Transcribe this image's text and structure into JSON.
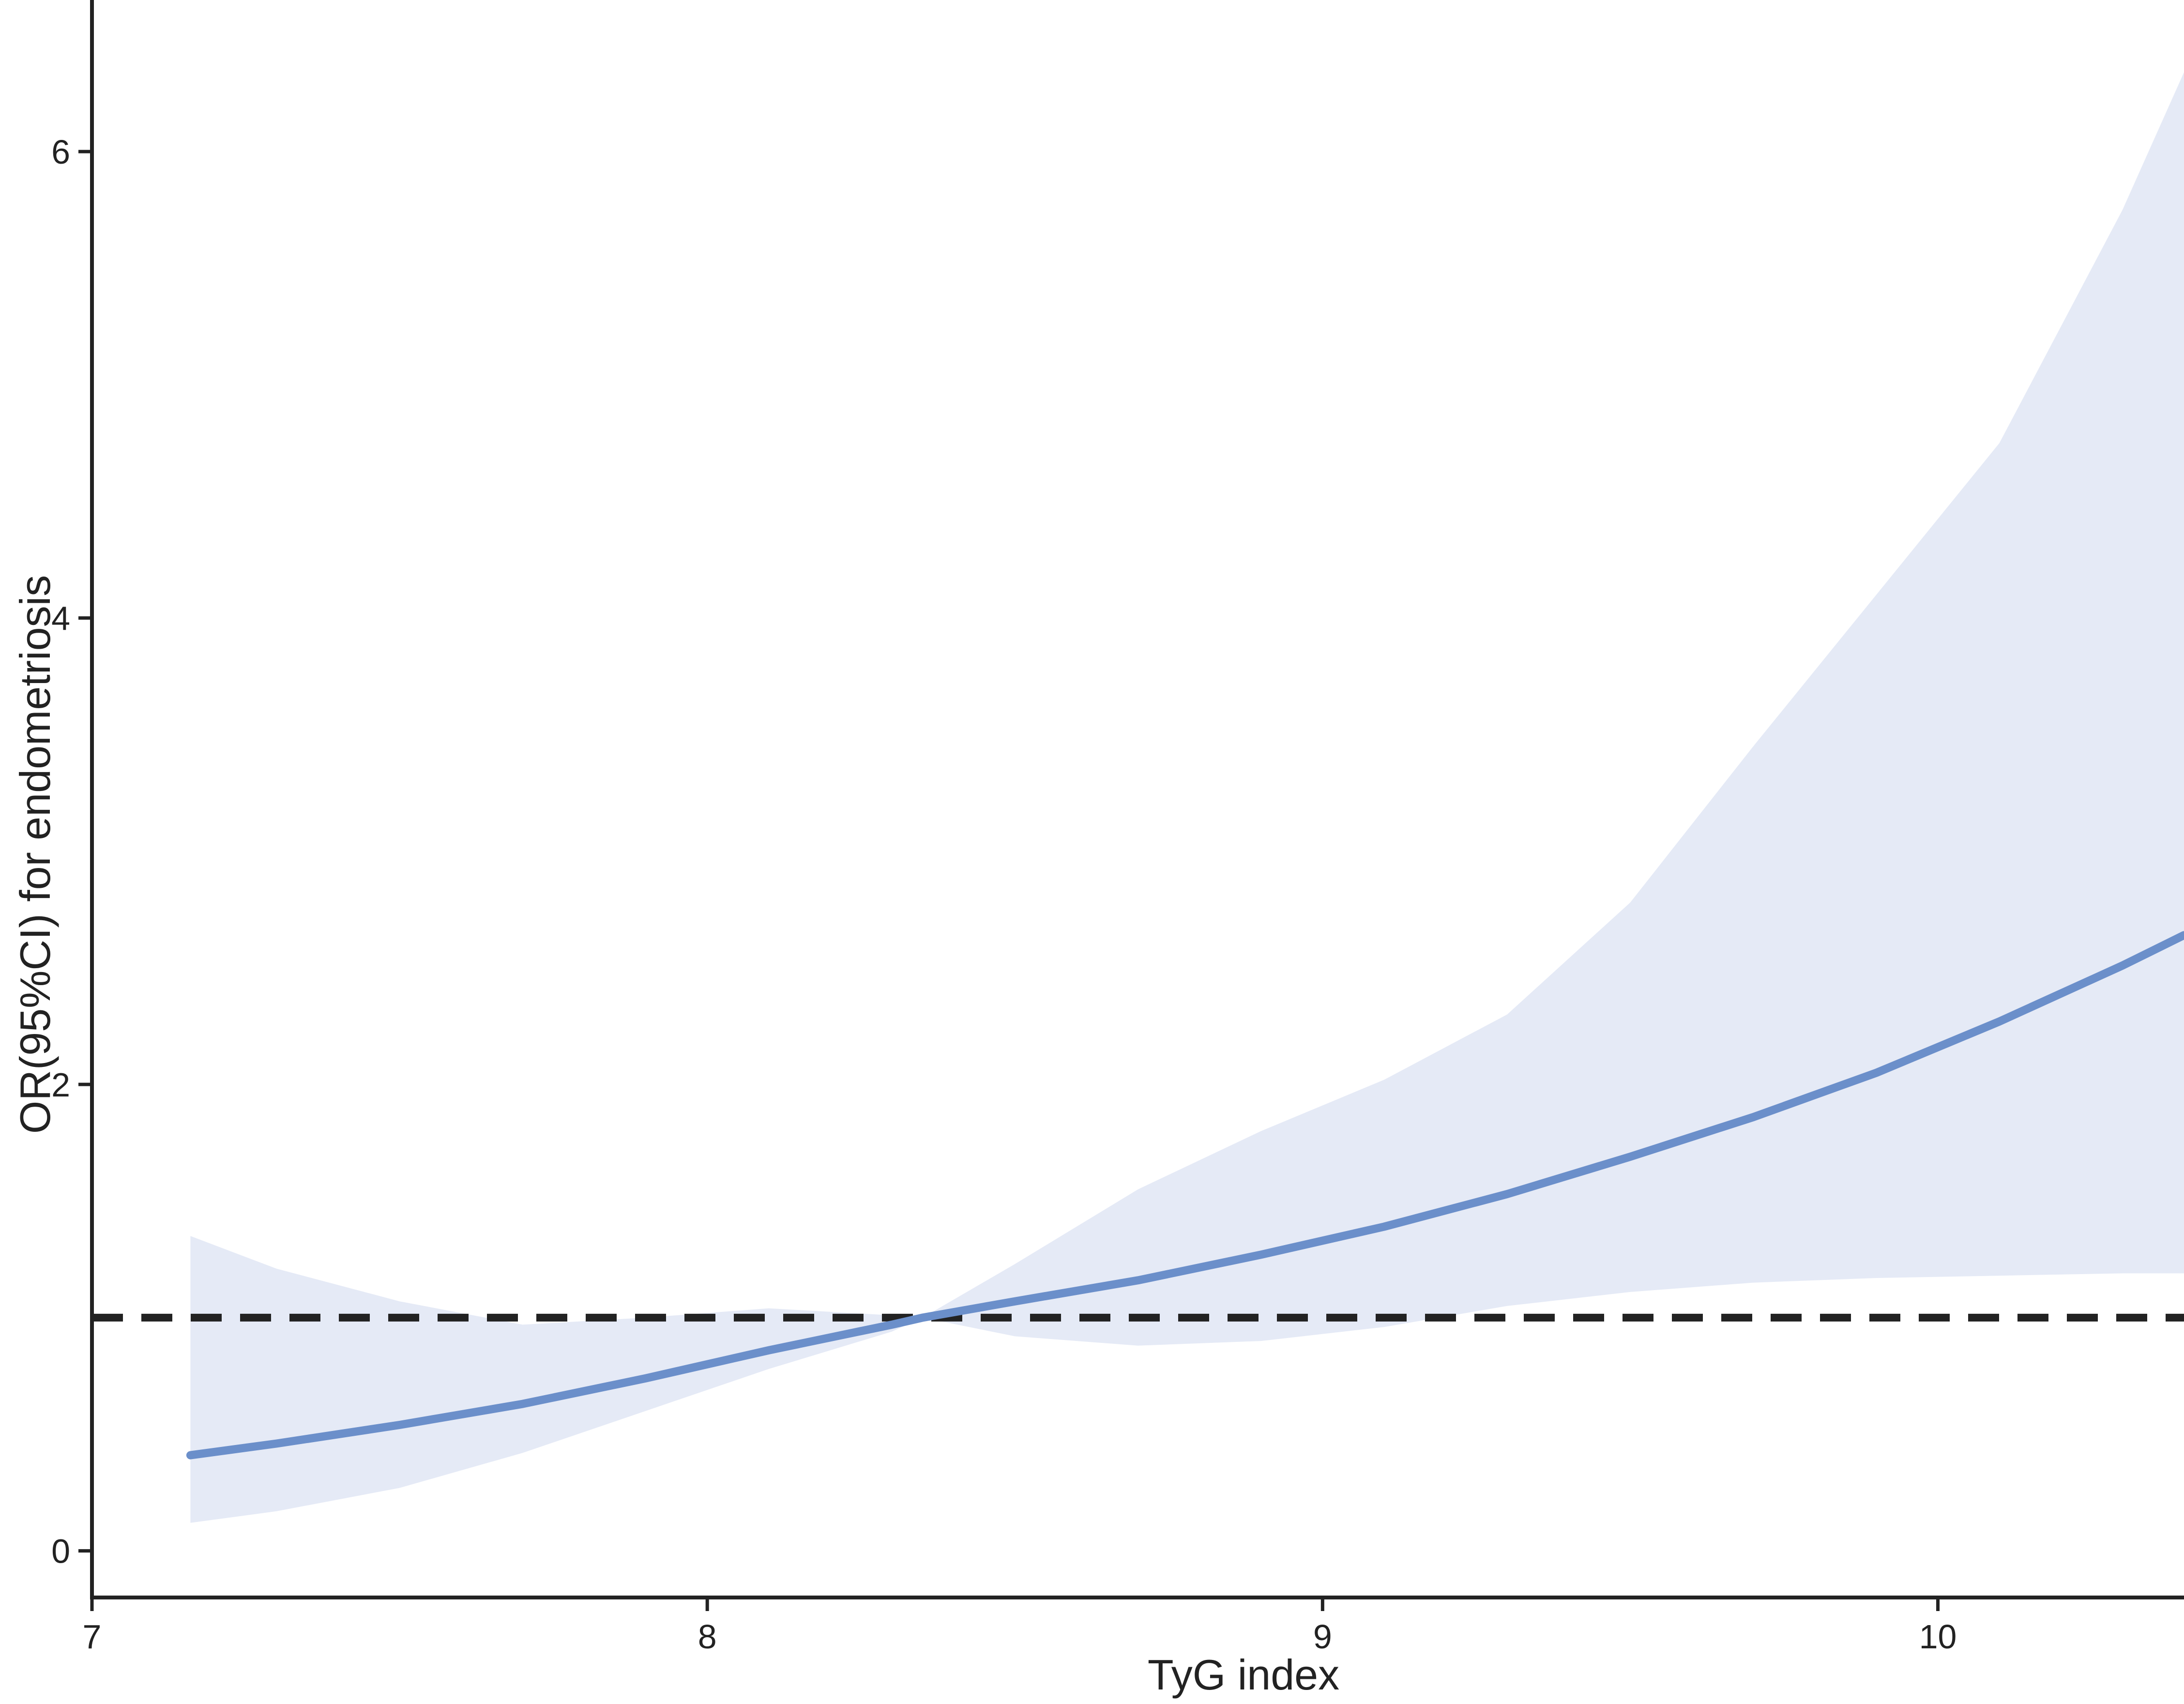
{
  "chart_data": {
    "type": "line",
    "xlabel": "TyG index",
    "ylabel": "OR(95%CI) for endometriosis",
    "xlim": [
      7,
      10.4
    ],
    "ylim": [
      -0.2,
      6.65
    ],
    "xticks": [
      7,
      8,
      9,
      10
    ],
    "yticks": [
      0,
      2,
      4,
      6
    ],
    "grid": false,
    "reference_line": {
      "y": 1,
      "style": "dashed",
      "color": "#222222"
    },
    "colors": {
      "line": "#6b8fca",
      "band": "#e5eaf6",
      "axis": "#222222"
    },
    "series": [
      {
        "x": [
          7.16,
          7.3,
          7.5,
          7.7,
          7.9,
          8.1,
          8.3,
          8.35,
          8.5,
          8.7,
          8.9,
          9.1,
          9.3,
          9.5,
          9.7,
          9.9,
          10.1,
          10.3,
          10.4
        ],
        "y": [
          0.41,
          0.46,
          0.54,
          0.63,
          0.74,
          0.86,
          0.97,
          1.0,
          1.07,
          1.16,
          1.27,
          1.39,
          1.53,
          1.69,
          1.86,
          2.05,
          2.27,
          2.51,
          2.64
        ],
        "lower": [
          0.12,
          0.17,
          0.27,
          0.42,
          0.6,
          0.78,
          0.94,
          1.0,
          0.92,
          0.88,
          0.9,
          0.96,
          1.05,
          1.11,
          1.15,
          1.17,
          1.18,
          1.19,
          1.19
        ],
        "upper": [
          1.35,
          1.21,
          1.07,
          0.97,
          1.0,
          1.04,
          1.01,
          1.0,
          1.23,
          1.55,
          1.8,
          2.02,
          2.3,
          2.78,
          3.45,
          4.1,
          4.75,
          5.75,
          6.34
        ]
      }
    ]
  }
}
